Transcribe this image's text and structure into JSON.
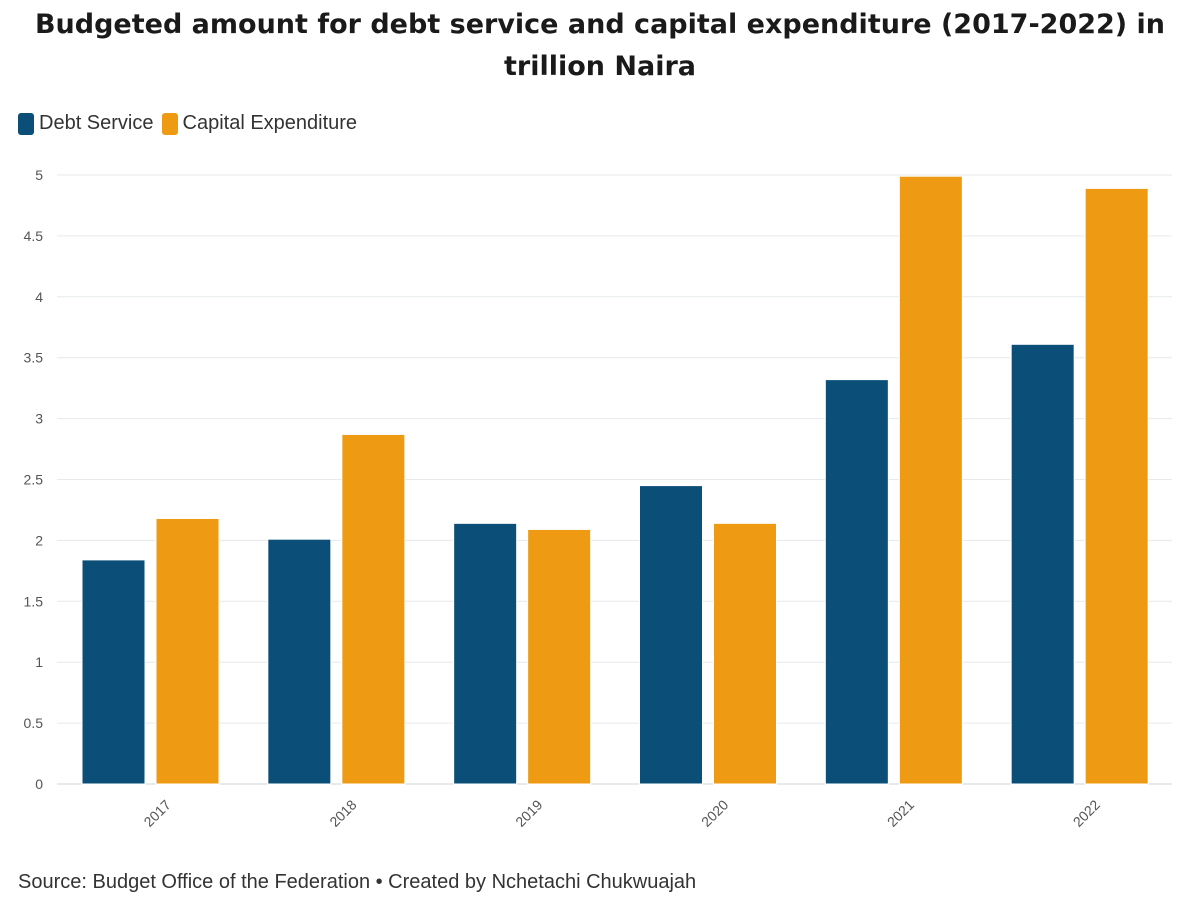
{
  "title": "Budgeted amount for debt service and capital expenditure (2017-2022) in trillion Naira",
  "legend": [
    {
      "label": "Debt Service",
      "color": "#0b4f79"
    },
    {
      "label": "Capital Expenditure",
      "color": "#ee9a12"
    }
  ],
  "source": "Source: Budget Office of the Federation • Created by Nchetachi Chukwuajah",
  "chart_data": {
    "type": "bar",
    "title": "Budgeted amount for debt service and capital expenditure (2017-2022) in trillion Naira",
    "xlabel": "",
    "ylabel": "",
    "categories": [
      "2017",
      "2018",
      "2019",
      "2020",
      "2021",
      "2022"
    ],
    "series": [
      {
        "name": "Debt Service",
        "color": "#0b4f79",
        "values": [
          1.84,
          2.01,
          2.14,
          2.45,
          3.32,
          3.61
        ]
      },
      {
        "name": "Capital Expenditure",
        "color": "#ee9a12",
        "values": [
          2.18,
          2.87,
          2.09,
          2.14,
          4.99,
          4.89
        ]
      }
    ],
    "ylim": [
      0,
      5
    ],
    "yticks": [
      "0",
      "0.5",
      "1",
      "1.5",
      "2",
      "2.5",
      "3",
      "3.5",
      "4",
      "4.5",
      "5"
    ],
    "grid": true,
    "legend_position": "top-left"
  }
}
